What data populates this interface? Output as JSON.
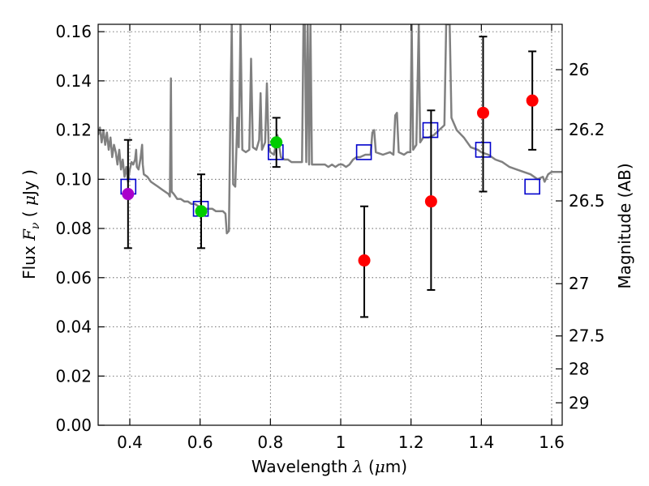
{
  "chart_data": {
    "type": "scatter",
    "xlabel": "Wavelength",
    "xlabel_symbol": "λ",
    "xlabel_unit_open": " (",
    "xlabel_unit_symbol": "μ",
    "xlabel_unit_close": "m)",
    "ylabel": "Flux",
    "ylabel_symbol": "F",
    "ylabel_subscript": "ν",
    "ylabel_unit_open": "( ",
    "ylabel_unit_symbol": "μ",
    "ylabel_unit_close": "Jy )",
    "y2label": "Magnitude (AB)",
    "xlim": [
      0.31,
      1.63
    ],
    "ylim": [
      0.0,
      0.163
    ],
    "x_ticks": [
      0.4,
      0.6,
      0.8,
      1.0,
      1.2,
      1.4,
      1.6
    ],
    "x_tick_labels": [
      "0.4",
      "0.6",
      "0.8",
      "1",
      "1.2",
      "1.4",
      "1.6"
    ],
    "y_ticks": [
      0.0,
      0.02,
      0.04,
      0.06,
      0.08,
      0.1,
      0.12,
      0.14,
      0.16
    ],
    "y_tick_labels": [
      "0.00",
      "0.02",
      "0.04",
      "0.06",
      "0.08",
      "0.10",
      "0.12",
      "0.14",
      "0.16"
    ],
    "y2_ticks": [
      26,
      26.2,
      26.5,
      27,
      27.5,
      28,
      29
    ],
    "y2_tick_labels": [
      "26",
      "26.2",
      "26.5",
      "27",
      "27.5",
      "28",
      "29"
    ],
    "grid": true,
    "colors": {
      "spectrum": "#808080",
      "model_box": "#0000cc",
      "errorbar": "#000000",
      "measured_red": "#ff0000",
      "measured_green": "#00cc00",
      "measured_purple": "#aa00cc"
    },
    "spectrum": [
      [
        0.31,
        0.118
      ],
      [
        0.315,
        0.121
      ],
      [
        0.32,
        0.115
      ],
      [
        0.325,
        0.12
      ],
      [
        0.33,
        0.114
      ],
      [
        0.335,
        0.119
      ],
      [
        0.34,
        0.112
      ],
      [
        0.345,
        0.117
      ],
      [
        0.35,
        0.109
      ],
      [
        0.355,
        0.114
      ],
      [
        0.36,
        0.111
      ],
      [
        0.365,
        0.106
      ],
      [
        0.37,
        0.112
      ],
      [
        0.375,
        0.104
      ],
      [
        0.38,
        0.108
      ],
      [
        0.385,
        0.101
      ],
      [
        0.39,
        0.105
      ],
      [
        0.395,
        0.099
      ],
      [
        0.4,
        0.104
      ],
      [
        0.405,
        0.107
      ],
      [
        0.41,
        0.106
      ],
      [
        0.415,
        0.108
      ],
      [
        0.418,
        0.112
      ],
      [
        0.42,
        0.105
      ],
      [
        0.425,
        0.104
      ],
      [
        0.43,
        0.108
      ],
      [
        0.435,
        0.114
      ],
      [
        0.437,
        0.106
      ],
      [
        0.44,
        0.102
      ],
      [
        0.45,
        0.101
      ],
      [
        0.46,
        0.099
      ],
      [
        0.47,
        0.098
      ],
      [
        0.48,
        0.097
      ],
      [
        0.49,
        0.096
      ],
      [
        0.5,
        0.095
      ],
      [
        0.51,
        0.094
      ],
      [
        0.514,
        0.093
      ],
      [
        0.517,
        0.141
      ],
      [
        0.519,
        0.095
      ],
      [
        0.525,
        0.094
      ],
      [
        0.535,
        0.092
      ],
      [
        0.545,
        0.092
      ],
      [
        0.555,
        0.091
      ],
      [
        0.565,
        0.091
      ],
      [
        0.575,
        0.09
      ],
      [
        0.585,
        0.09
      ],
      [
        0.595,
        0.089
      ],
      [
        0.605,
        0.089
      ],
      [
        0.615,
        0.088
      ],
      [
        0.625,
        0.088
      ],
      [
        0.635,
        0.088
      ],
      [
        0.645,
        0.087
      ],
      [
        0.655,
        0.087
      ],
      [
        0.665,
        0.087
      ],
      [
        0.672,
        0.086
      ],
      [
        0.676,
        0.078
      ],
      [
        0.682,
        0.079
      ],
      [
        0.686,
        0.125
      ],
      [
        0.69,
        0.163
      ],
      [
        0.694,
        0.098
      ],
      [
        0.7,
        0.097
      ],
      [
        0.706,
        0.125
      ],
      [
        0.71,
        0.113
      ],
      [
        0.715,
        0.163
      ],
      [
        0.72,
        0.112
      ],
      [
        0.73,
        0.111
      ],
      [
        0.74,
        0.112
      ],
      [
        0.745,
        0.149
      ],
      [
        0.75,
        0.113
      ],
      [
        0.76,
        0.112
      ],
      [
        0.768,
        0.116
      ],
      [
        0.772,
        0.135
      ],
      [
        0.776,
        0.112
      ],
      [
        0.785,
        0.115
      ],
      [
        0.79,
        0.139
      ],
      [
        0.795,
        0.113
      ],
      [
        0.8,
        0.111
      ],
      [
        0.81,
        0.11
      ],
      [
        0.82,
        0.118
      ],
      [
        0.83,
        0.109
      ],
      [
        0.84,
        0.108
      ],
      [
        0.85,
        0.108
      ],
      [
        0.86,
        0.107
      ],
      [
        0.87,
        0.107
      ],
      [
        0.88,
        0.107
      ],
      [
        0.89,
        0.107
      ],
      [
        0.894,
        0.163
      ],
      [
        0.898,
        0.163
      ],
      [
        0.902,
        0.107
      ],
      [
        0.906,
        0.163
      ],
      [
        0.91,
        0.106
      ],
      [
        0.914,
        0.163
      ],
      [
        0.918,
        0.106
      ],
      [
        0.925,
        0.106
      ],
      [
        0.935,
        0.106
      ],
      [
        0.945,
        0.106
      ],
      [
        0.955,
        0.106
      ],
      [
        0.965,
        0.105
      ],
      [
        0.975,
        0.106
      ],
      [
        0.985,
        0.105
      ],
      [
        0.995,
        0.106
      ],
      [
        1.005,
        0.106
      ],
      [
        1.015,
        0.105
      ],
      [
        1.025,
        0.106
      ],
      [
        1.035,
        0.108
      ],
      [
        1.045,
        0.109
      ],
      [
        1.055,
        0.109
      ],
      [
        1.07,
        0.11
      ],
      [
        1.085,
        0.11
      ],
      [
        1.09,
        0.119
      ],
      [
        1.095,
        0.12
      ],
      [
        1.1,
        0.111
      ],
      [
        1.12,
        0.11
      ],
      [
        1.14,
        0.111
      ],
      [
        1.15,
        0.11
      ],
      [
        1.155,
        0.126
      ],
      [
        1.16,
        0.127
      ],
      [
        1.165,
        0.111
      ],
      [
        1.18,
        0.11
      ],
      [
        1.19,
        0.111
      ],
      [
        1.198,
        0.111
      ],
      [
        1.202,
        0.163
      ],
      [
        1.206,
        0.112
      ],
      [
        1.215,
        0.114
      ],
      [
        1.222,
        0.163
      ],
      [
        1.226,
        0.115
      ],
      [
        1.235,
        0.117
      ],
      [
        1.25,
        0.117
      ],
      [
        1.265,
        0.118
      ],
      [
        1.28,
        0.12
      ],
      [
        1.295,
        0.122
      ],
      [
        1.3,
        0.163
      ],
      [
        1.31,
        0.163
      ],
      [
        1.315,
        0.125
      ],
      [
        1.33,
        0.12
      ],
      [
        1.35,
        0.117
      ],
      [
        1.37,
        0.113
      ],
      [
        1.39,
        0.112
      ],
      [
        1.4,
        0.111
      ],
      [
        1.42,
        0.11
      ],
      [
        1.44,
        0.108
      ],
      [
        1.46,
        0.107
      ],
      [
        1.48,
        0.105
      ],
      [
        1.5,
        0.104
      ],
      [
        1.52,
        0.103
      ],
      [
        1.54,
        0.102
      ],
      [
        1.56,
        0.1
      ],
      [
        1.575,
        0.101
      ],
      [
        1.58,
        0.099
      ],
      [
        1.59,
        0.102
      ],
      [
        1.6,
        0.103
      ],
      [
        1.62,
        0.103
      ],
      [
        1.63,
        0.103
      ]
    ],
    "model_boxes": [
      {
        "x": 0.396,
        "y": 0.097
      },
      {
        "x": 0.602,
        "y": 0.088
      },
      {
        "x": 0.815,
        "y": 0.111
      },
      {
        "x": 1.066,
        "y": 0.111
      },
      {
        "x": 1.255,
        "y": 0.12
      },
      {
        "x": 1.405,
        "y": 0.112
      },
      {
        "x": 1.545,
        "y": 0.097
      }
    ],
    "measurements": [
      {
        "x": 0.395,
        "y": 0.094,
        "err_low": 0.072,
        "err_high": 0.116,
        "color": "purple"
      },
      {
        "x": 0.603,
        "y": 0.087,
        "err_low": 0.072,
        "err_high": 0.102,
        "color": "green"
      },
      {
        "x": 0.817,
        "y": 0.115,
        "err_low": 0.105,
        "err_high": 0.125,
        "color": "green"
      },
      {
        "x": 1.067,
        "y": 0.067,
        "err_low": 0.044,
        "err_high": 0.089,
        "color": "red"
      },
      {
        "x": 1.257,
        "y": 0.091,
        "err_low": 0.055,
        "err_high": 0.128,
        "color": "red"
      },
      {
        "x": 1.405,
        "y": 0.127,
        "err_low": 0.095,
        "err_high": 0.158,
        "color": "red"
      },
      {
        "x": 1.545,
        "y": 0.132,
        "err_low": 0.112,
        "err_high": 0.152,
        "color": "red"
      }
    ]
  }
}
